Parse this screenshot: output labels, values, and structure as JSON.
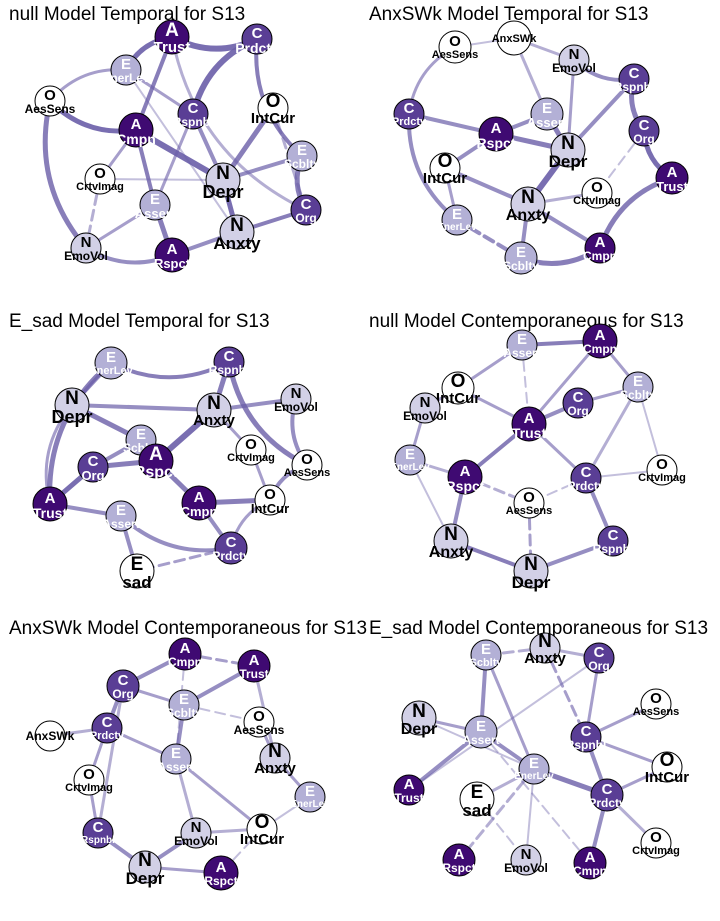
{
  "colors": {
    "edge": "#6a5ea8",
    "node_A": "#3f0a72",
    "node_C": "#5a3e95",
    "node_E": "#b3b0d6",
    "node_N": "#d2d0e6",
    "node_O": "#ffffff",
    "node_stroke": "#000000"
  },
  "panels": [
    {
      "title": "null Model Temporal for S13",
      "nodes": [
        {
          "letter": "A",
          "label": "Trust",
          "group": "A"
        },
        {
          "letter": "C",
          "label": "Prdctv",
          "group": "C"
        },
        {
          "letter": "E",
          "label": "EnerLev",
          "group": "E"
        },
        {
          "letter": "O",
          "label": "AesSens",
          "group": "O"
        },
        {
          "letter": "O",
          "label": "IntCur",
          "group": "O"
        },
        {
          "letter": "C",
          "label": "Rspnbl",
          "group": "C"
        },
        {
          "letter": "A",
          "label": "Cmpn",
          "group": "A"
        },
        {
          "letter": "E",
          "label": "Scblty",
          "group": "E"
        },
        {
          "letter": "O",
          "label": "CrtvImag",
          "group": "O"
        },
        {
          "letter": "N",
          "label": "Depr",
          "group": "N"
        },
        {
          "letter": "C",
          "label": "Org",
          "group": "C"
        },
        {
          "letter": "E",
          "label": "Assert",
          "group": "E"
        },
        {
          "letter": "N",
          "label": "Anxty",
          "group": "N"
        },
        {
          "letter": "N",
          "label": "EmoVol",
          "group": "N"
        },
        {
          "letter": "A",
          "label": "Rspct",
          "group": "A"
        }
      ]
    },
    {
      "title": "AnxSWk Model Temporal for S13",
      "nodes": [
        {
          "letter": "O",
          "label": "AesSens",
          "group": "O"
        },
        {
          "letter": "",
          "label": "AnxSWk",
          "group": "O"
        },
        {
          "letter": "N",
          "label": "EmoVol",
          "group": "N"
        },
        {
          "letter": "C",
          "label": "Rspnbl",
          "group": "C"
        },
        {
          "letter": "C",
          "label": "Prdctv",
          "group": "C"
        },
        {
          "letter": "E",
          "label": "Assert",
          "group": "E"
        },
        {
          "letter": "A",
          "label": "Rspct",
          "group": "A"
        },
        {
          "letter": "C",
          "label": "Org",
          "group": "C"
        },
        {
          "letter": "N",
          "label": "Depr",
          "group": "N"
        },
        {
          "letter": "O",
          "label": "IntCur",
          "group": "O"
        },
        {
          "letter": "O",
          "label": "CrtvImag",
          "group": "O"
        },
        {
          "letter": "A",
          "label": "Trust",
          "group": "A"
        },
        {
          "letter": "N",
          "label": "Anxty",
          "group": "N"
        },
        {
          "letter": "E",
          "label": "EnerLev",
          "group": "E"
        },
        {
          "letter": "E",
          "label": "Scblty",
          "group": "E"
        },
        {
          "letter": "A",
          "label": "Cmpn",
          "group": "A"
        }
      ]
    },
    {
      "title": "E_sad Model Temporal for S13",
      "nodes": [
        {
          "letter": "E",
          "label": "EnerLev",
          "group": "E"
        },
        {
          "letter": "C",
          "label": "Rspnbl",
          "group": "C"
        },
        {
          "letter": "N",
          "label": "Depr",
          "group": "N"
        },
        {
          "letter": "N",
          "label": "EmoVol",
          "group": "N"
        },
        {
          "letter": "E",
          "label": "Scblty",
          "group": "E"
        },
        {
          "letter": "N",
          "label": "Anxty",
          "group": "N"
        },
        {
          "letter": "O",
          "label": "CrtvImag",
          "group": "O"
        },
        {
          "letter": "C",
          "label": "Org",
          "group": "C"
        },
        {
          "letter": "A",
          "label": "Rspct",
          "group": "A"
        },
        {
          "letter": "O",
          "label": "AesSens",
          "group": "O"
        },
        {
          "letter": "A",
          "label": "Trust",
          "group": "A"
        },
        {
          "letter": "A",
          "label": "Cmpn",
          "group": "A"
        },
        {
          "letter": "O",
          "label": "IntCur",
          "group": "O"
        },
        {
          "letter": "E",
          "label": "Assert",
          "group": "E"
        },
        {
          "letter": "C",
          "label": "Prdctv",
          "group": "C"
        },
        {
          "letter": "E",
          "label": "sad",
          "group": "O"
        }
      ]
    },
    {
      "title": "null Model Contemporaneous for S13",
      "nodes": [
        {
          "letter": "E",
          "label": "Assert",
          "group": "E"
        },
        {
          "letter": "A",
          "label": "Cmpn",
          "group": "A"
        },
        {
          "letter": "O",
          "label": "IntCur",
          "group": "O"
        },
        {
          "letter": "E",
          "label": "Scblty",
          "group": "E"
        },
        {
          "letter": "N",
          "label": "EmoVol",
          "group": "N"
        },
        {
          "letter": "C",
          "label": "Org",
          "group": "C"
        },
        {
          "letter": "A",
          "label": "Trust",
          "group": "A"
        },
        {
          "letter": "E",
          "label": "EnerLev",
          "group": "E"
        },
        {
          "letter": "O",
          "label": "CrtvImag",
          "group": "O"
        },
        {
          "letter": "A",
          "label": "Rspct",
          "group": "A"
        },
        {
          "letter": "C",
          "label": "Prdctv",
          "group": "C"
        },
        {
          "letter": "O",
          "label": "AesSens",
          "group": "O"
        },
        {
          "letter": "N",
          "label": "Anxty",
          "group": "N"
        },
        {
          "letter": "C",
          "label": "Rspnbl",
          "group": "C"
        },
        {
          "letter": "N",
          "label": "Depr",
          "group": "N"
        }
      ]
    },
    {
      "title": "AnxSWk Model Contemporaneous for S13",
      "nodes": [
        {
          "letter": "A",
          "label": "Cmpn",
          "group": "A"
        },
        {
          "letter": "A",
          "label": "Trust",
          "group": "A"
        },
        {
          "letter": "C",
          "label": "Org",
          "group": "C"
        },
        {
          "letter": "E",
          "label": "Scblty",
          "group": "E"
        },
        {
          "letter": "O",
          "label": "AesSens",
          "group": "O"
        },
        {
          "letter": "",
          "label": "AnxSWk",
          "group": "O"
        },
        {
          "letter": "C",
          "label": "Prdctv",
          "group": "C"
        },
        {
          "letter": "N",
          "label": "Anxty",
          "group": "N"
        },
        {
          "letter": "E",
          "label": "Assert",
          "group": "E"
        },
        {
          "letter": "O",
          "label": "CrtvImag",
          "group": "O"
        },
        {
          "letter": "E",
          "label": "EnerLev",
          "group": "E"
        },
        {
          "letter": "N",
          "label": "EmoVol",
          "group": "N"
        },
        {
          "letter": "O",
          "label": "IntCur",
          "group": "O"
        },
        {
          "letter": "C",
          "label": "Rspnbl",
          "group": "C"
        },
        {
          "letter": "N",
          "label": "Depr",
          "group": "N"
        },
        {
          "letter": "A",
          "label": "Rspct",
          "group": "A"
        }
      ]
    },
    {
      "title": "E_sad Model Contemporaneous for S13",
      "nodes": [
        {
          "letter": "N",
          "label": "Anxty",
          "group": "N"
        },
        {
          "letter": "E",
          "label": "Scblty",
          "group": "E"
        },
        {
          "letter": "C",
          "label": "Org",
          "group": "C"
        },
        {
          "letter": "O",
          "label": "AesSens",
          "group": "O"
        },
        {
          "letter": "N",
          "label": "Depr",
          "group": "N"
        },
        {
          "letter": "E",
          "label": "Assert",
          "group": "E"
        },
        {
          "letter": "C",
          "label": "Rspnbl",
          "group": "C"
        },
        {
          "letter": "O",
          "label": "IntCur",
          "group": "O"
        },
        {
          "letter": "E",
          "label": "EnerLev",
          "group": "E"
        },
        {
          "letter": "A",
          "label": "Trust",
          "group": "A"
        },
        {
          "letter": "C",
          "label": "Prdctv",
          "group": "C"
        },
        {
          "letter": "E",
          "label": "sad",
          "group": "O"
        },
        {
          "letter": "O",
          "label": "CrtvImag",
          "group": "O"
        },
        {
          "letter": "A",
          "label": "Rspct",
          "group": "A"
        },
        {
          "letter": "N",
          "label": "EmoVol",
          "group": "N"
        },
        {
          "letter": "A",
          "label": "Cmpn",
          "group": "A"
        }
      ]
    }
  ]
}
